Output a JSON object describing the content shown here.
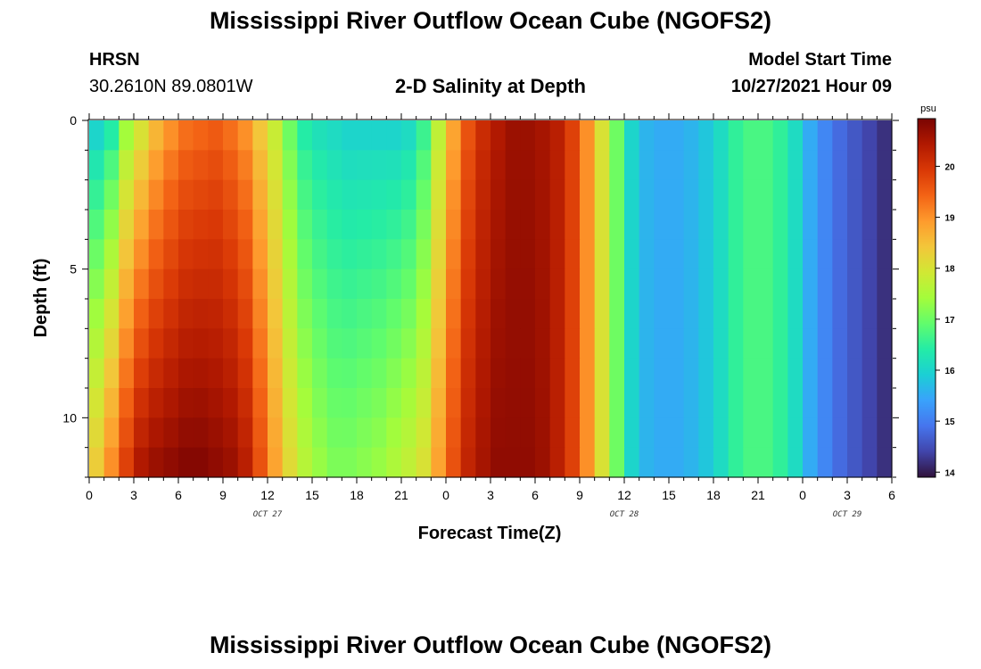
{
  "header": {
    "title": "Mississippi River Outflow Ocean Cube (NGOFS2)",
    "station": "HRSN",
    "coordinates": "30.2610N  89.0801W",
    "subtitle": "2-D Salinity at Depth",
    "model_start_label": "Model Start Time",
    "model_start_value": "10/27/2021 Hour 09"
  },
  "footer": {
    "title": "Mississippi River Outflow Ocean Cube (NGOFS2)"
  },
  "chart_data": {
    "type": "heatmap",
    "xlabel": "Forecast Time(Z)",
    "ylabel": "Depth (ft)",
    "x_range_hours": [
      0,
      54
    ],
    "x_ticks": [
      {
        "hour": 0,
        "label": "0"
      },
      {
        "hour": 3,
        "label": "3"
      },
      {
        "hour": 6,
        "label": "6"
      },
      {
        "hour": 9,
        "label": "9"
      },
      {
        "hour": 12,
        "label": "12"
      },
      {
        "hour": 15,
        "label": "15"
      },
      {
        "hour": 18,
        "label": "18"
      },
      {
        "hour": 21,
        "label": "21"
      },
      {
        "hour": 24,
        "label": "0"
      },
      {
        "hour": 27,
        "label": "3"
      },
      {
        "hour": 30,
        "label": "6"
      },
      {
        "hour": 33,
        "label": "9"
      },
      {
        "hour": 36,
        "label": "12"
      },
      {
        "hour": 39,
        "label": "15"
      },
      {
        "hour": 42,
        "label": "18"
      },
      {
        "hour": 45,
        "label": "21"
      },
      {
        "hour": 48,
        "label": "0"
      },
      {
        "hour": 51,
        "label": "3"
      },
      {
        "hour": 54,
        "label": "6"
      }
    ],
    "date_labels": [
      {
        "hour": 12,
        "label": "OCT 27"
      },
      {
        "hour": 36,
        "label": "OCT 28"
      },
      {
        "hour": 51,
        "label": "OCT 29"
      }
    ],
    "y_range_ft": [
      0,
      12
    ],
    "y_ticks": [
      {
        "depth": 0,
        "label": "0"
      },
      {
        "depth": 5,
        "label": "5"
      },
      {
        "depth": 10,
        "label": "10"
      }
    ],
    "n_depth_rows": 12,
    "n_time_cols": 54,
    "colorbar": {
      "unit": "psu",
      "range": [
        13.9,
        20.9
      ],
      "ticks": [
        {
          "value": 14,
          "label": "14"
        },
        {
          "value": 15,
          "label": "15"
        },
        {
          "value": 16,
          "label": "16"
        },
        {
          "value": 17,
          "label": "17"
        },
        {
          "value": 18,
          "label": "18"
        },
        {
          "value": 19,
          "label": "19"
        },
        {
          "value": 20,
          "label": "20"
        }
      ],
      "stops": [
        "#30123b",
        "#4145ab",
        "#4675ed",
        "#39a2fc",
        "#1bcfd4",
        "#24eca6",
        "#61fc6c",
        "#a4fc3b",
        "#d1e834",
        "#f3c63a",
        "#fe9b2d",
        "#f36315",
        "#d93806",
        "#b11901",
        "#7a0402"
      ]
    },
    "salinity_profile_note": "Surface (row 0) and near-bottom (rows 10-11) salinity in psu per forecast hour",
    "surface_psu": [
      16.0,
      16.4,
      17.4,
      18.0,
      18.6,
      19.0,
      19.3,
      19.4,
      19.5,
      19.3,
      19.0,
      18.4,
      17.8,
      17.0,
      16.4,
      16.2,
      16.1,
      16.0,
      16.0,
      16.0,
      16.0,
      16.1,
      16.6,
      17.7,
      18.8,
      19.6,
      20.1,
      20.4,
      20.6,
      20.6,
      20.5,
      20.3,
      19.8,
      19.0,
      18.0,
      17.0,
      16.0,
      15.6,
      15.5,
      15.5,
      15.6,
      15.8,
      16.1,
      16.5,
      16.7,
      16.7,
      16.5,
      16.1,
      15.5,
      15.1,
      14.8,
      14.6,
      14.4,
      14.2
    ],
    "bottom_psu": [
      18.3,
      19.0,
      19.8,
      20.4,
      20.6,
      20.7,
      20.8,
      20.8,
      20.7,
      20.6,
      20.3,
      19.6,
      18.8,
      18.1,
      17.6,
      17.3,
      17.1,
      17.1,
      17.2,
      17.3,
      17.5,
      17.7,
      18.0,
      18.8,
      19.6,
      20.2,
      20.5,
      20.7,
      20.7,
      20.7,
      20.6,
      20.3,
      19.8,
      19.0,
      18.0,
      17.0,
      16.0,
      15.6,
      15.5,
      15.5,
      15.6,
      15.8,
      16.1,
      16.5,
      16.7,
      16.7,
      16.5,
      16.1,
      15.5,
      15.1,
      14.8,
      14.6,
      14.4,
      14.2
    ]
  }
}
